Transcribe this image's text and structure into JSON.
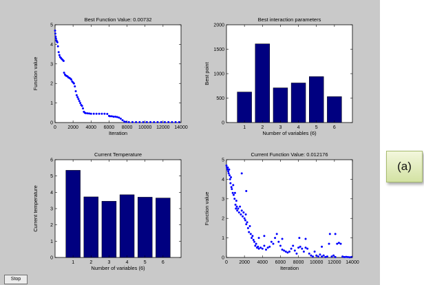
{
  "window": {
    "stop_label": "Stop",
    "panel_label": "(a)"
  },
  "chart_data": [
    {
      "id": "best-function-value",
      "type": "scatter",
      "title": "Best Function Value: 0.00732",
      "xlabel": "Iteration",
      "ylabel": "Function value",
      "xlim": [
        0,
        14000
      ],
      "ylim": [
        0,
        5
      ],
      "xticks": [
        0,
        2000,
        4000,
        6000,
        8000,
        10000,
        12000,
        14000
      ],
      "yticks": [
        0,
        1,
        2,
        3,
        4,
        5
      ],
      "marker_color": "#0000ff",
      "points": [
        [
          0,
          4.7
        ],
        [
          30,
          4.55
        ],
        [
          60,
          4.4
        ],
        [
          100,
          4.3
        ],
        [
          150,
          4.2
        ],
        [
          200,
          4.15
        ],
        [
          260,
          4.1
        ],
        [
          320,
          3.9
        ],
        [
          400,
          3.6
        ],
        [
          480,
          3.45
        ],
        [
          560,
          3.35
        ],
        [
          650,
          3.3
        ],
        [
          750,
          3.25
        ],
        [
          850,
          3.2
        ],
        [
          950,
          3.15
        ],
        [
          1000,
          2.55
        ],
        [
          1100,
          2.45
        ],
        [
          1200,
          2.4
        ],
        [
          1300,
          2.38
        ],
        [
          1400,
          2.35
        ],
        [
          1500,
          2.3
        ],
        [
          1600,
          2.28
        ],
        [
          1700,
          2.25
        ],
        [
          1800,
          2.2
        ],
        [
          1900,
          2.1
        ],
        [
          2000,
          2.05
        ],
        [
          2100,
          2.0
        ],
        [
          2200,
          1.85
        ],
        [
          2300,
          1.6
        ],
        [
          2400,
          1.4
        ],
        [
          2500,
          1.3
        ],
        [
          2600,
          1.2
        ],
        [
          2700,
          1.1
        ],
        [
          2800,
          1.0
        ],
        [
          2900,
          0.9
        ],
        [
          3000,
          0.85
        ],
        [
          3100,
          0.72
        ],
        [
          3200,
          0.55
        ],
        [
          3300,
          0.5
        ],
        [
          3400,
          0.48
        ],
        [
          3600,
          0.47
        ],
        [
          3800,
          0.46
        ],
        [
          4000,
          0.45
        ],
        [
          4300,
          0.45
        ],
        [
          4600,
          0.45
        ],
        [
          4900,
          0.45
        ],
        [
          5200,
          0.45
        ],
        [
          5500,
          0.45
        ],
        [
          5800,
          0.44
        ],
        [
          6000,
          0.34
        ],
        [
          6100,
          0.32
        ],
        [
          6300,
          0.32
        ],
        [
          6500,
          0.3
        ],
        [
          6700,
          0.3
        ],
        [
          6900,
          0.28
        ],
        [
          7100,
          0.25
        ],
        [
          7300,
          0.2
        ],
        [
          7500,
          0.12
        ],
        [
          7700,
          0.05
        ],
        [
          7900,
          0.03
        ],
        [
          8200,
          0.02
        ],
        [
          8600,
          0.02
        ],
        [
          9000,
          0.02
        ],
        [
          9400,
          0.02
        ],
        [
          9800,
          0.02
        ],
        [
          10200,
          0.02
        ],
        [
          10600,
          0.02
        ],
        [
          11000,
          0.02
        ],
        [
          11400,
          0.02
        ],
        [
          11800,
          0.02
        ],
        [
          12200,
          0.02
        ],
        [
          12600,
          0.02
        ],
        [
          13000,
          0.02
        ],
        [
          13400,
          0.02
        ],
        [
          13800,
          0.02
        ]
      ]
    },
    {
      "id": "best-interaction-parameters",
      "type": "bar",
      "title": "Best interaction parameters",
      "xlabel": "Number of variables (6)",
      "ylabel": "Best point",
      "categories": [
        "1",
        "2",
        "3",
        "4",
        "5",
        "6"
      ],
      "values": [
        625,
        1610,
        710,
        810,
        940,
        530
      ],
      "ylim": [
        0,
        2000
      ],
      "yticks": [
        0,
        500,
        1000,
        1500,
        2000
      ],
      "bar_color": "#000080"
    },
    {
      "id": "current-temperature",
      "type": "bar",
      "title": "Current Temperature",
      "xlabel": "Number of variables (6)",
      "ylabel": "Current temperature",
      "categories": [
        "1",
        "2",
        "3",
        "4",
        "5",
        "6"
      ],
      "values": [
        5.35,
        3.72,
        3.45,
        3.85,
        3.7,
        3.65
      ],
      "ylim": [
        0,
        6
      ],
      "yticks": [
        0,
        1,
        2,
        3,
        4,
        5,
        6
      ],
      "bar_color": "#000080"
    },
    {
      "id": "current-function-value",
      "type": "scatter",
      "title": "Current Function Value: 0.012176",
      "xlabel": "Iteration",
      "ylabel": "Function value",
      "xlim": [
        0,
        14000
      ],
      "ylim": [
        0,
        5
      ],
      "xticks": [
        0,
        2000,
        4000,
        6000,
        8000,
        10000,
        12000,
        14000
      ],
      "yticks": [
        0,
        1,
        2,
        3,
        4,
        5
      ],
      "marker_color": "#0000ff",
      "points": [
        [
          0,
          4.7
        ],
        [
          50,
          4.6
        ],
        [
          100,
          4.5
        ],
        [
          150,
          4.6
        ],
        [
          200,
          4.4
        ],
        [
          250,
          4.3
        ],
        [
          300,
          4.5
        ],
        [
          350,
          4.2
        ],
        [
          400,
          4.0
        ],
        [
          450,
          3.8
        ],
        [
          500,
          4.1
        ],
        [
          550,
          3.6
        ],
        [
          600,
          3.5
        ],
        [
          700,
          3.3
        ],
        [
          750,
          3.7
        ],
        [
          800,
          3.2
        ],
        [
          900,
          3.0
        ],
        [
          950,
          3.3
        ],
        [
          1000,
          2.7
        ],
        [
          1050,
          2.5
        ],
        [
          1100,
          2.9
        ],
        [
          1150,
          2.6
        ],
        [
          1200,
          2.4
        ],
        [
          1300,
          2.5
        ],
        [
          1400,
          2.3
        ],
        [
          1500,
          2.6
        ],
        [
          1600,
          2.2
        ],
        [
          1700,
          2.4
        ],
        [
          1800,
          2.1
        ],
        [
          1900,
          2.3
        ],
        [
          2000,
          2.0
        ],
        [
          2100,
          1.9
        ],
        [
          2150,
          2.2
        ],
        [
          2200,
          1.7
        ],
        [
          2300,
          1.8
        ],
        [
          2400,
          1.5
        ],
        [
          2500,
          1.3
        ],
        [
          2600,
          1.6
        ],
        [
          2700,
          1.2
        ],
        [
          2800,
          1.0
        ],
        [
          2900,
          1.1
        ],
        [
          3000,
          0.9
        ],
        [
          3100,
          0.8
        ],
        [
          3200,
          0.6
        ],
        [
          3300,
          0.7
        ],
        [
          3400,
          0.5
        ],
        [
          3500,
          0.55
        ],
        [
          3600,
          0.45
        ],
        [
          3800,
          0.5
        ],
        [
          4000,
          0.45
        ],
        [
          4200,
          0.6
        ],
        [
          4400,
          0.4
        ],
        [
          4600,
          0.5
        ],
        [
          4800,
          0.55
        ],
        [
          5000,
          0.8
        ],
        [
          5200,
          0.7
        ],
        [
          5400,
          1.0
        ],
        [
          5600,
          1.2
        ],
        [
          5800,
          0.8
        ],
        [
          6000,
          0.6
        ],
        [
          6200,
          0.4
        ],
        [
          6400,
          0.35
        ],
        [
          6600,
          0.3
        ],
        [
          6800,
          0.25
        ],
        [
          7000,
          0.3
        ],
        [
          7200,
          0.45
        ],
        [
          7400,
          0.6
        ],
        [
          7600,
          0.35
        ],
        [
          7800,
          0.2
        ],
        [
          8000,
          0.5
        ],
        [
          8200,
          0.55
        ],
        [
          8400,
          0.45
        ],
        [
          8600,
          0.3
        ],
        [
          8800,
          0.5
        ],
        [
          9000,
          0.45
        ],
        [
          9200,
          0.2
        ],
        [
          9400,
          0.1
        ],
        [
          9600,
          0.05
        ],
        [
          9800,
          0.3
        ],
        [
          10000,
          0.1
        ],
        [
          10200,
          0.05
        ],
        [
          10400,
          0.15
        ],
        [
          10600,
          0.05
        ],
        [
          10800,
          0.1
        ],
        [
          11000,
          0.02
        ],
        [
          11200,
          0.05
        ],
        [
          11400,
          0.7
        ],
        [
          11500,
          1.2
        ],
        [
          11700,
          0.05
        ],
        [
          11900,
          0.1
        ],
        [
          12100,
          0.02
        ],
        [
          12300,
          0.7
        ],
        [
          12500,
          0.75
        ],
        [
          12700,
          0.7
        ],
        [
          12900,
          0.05
        ],
        [
          13100,
          0.02
        ],
        [
          13300,
          0.03
        ],
        [
          13500,
          0.02
        ],
        [
          13700,
          0.01
        ],
        [
          13900,
          0.02
        ],
        [
          1700,
          4.3
        ],
        [
          2200,
          3.4
        ],
        [
          3600,
          1.0
        ],
        [
          4200,
          1.1
        ],
        [
          6200,
          0.95
        ],
        [
          8100,
          1.0
        ],
        [
          8800,
          0.95
        ],
        [
          10600,
          0.55
        ],
        [
          12100,
          1.2
        ]
      ]
    }
  ]
}
